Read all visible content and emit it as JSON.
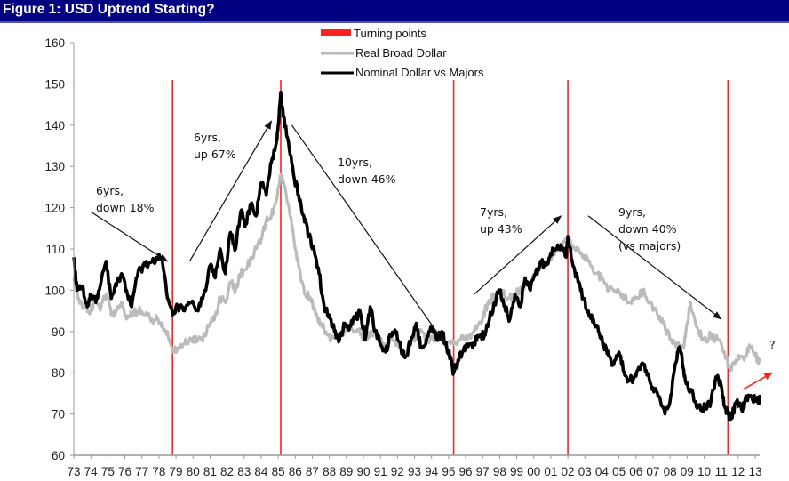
{
  "header": {
    "title": "Figure 1: USD Uptrend Starting?"
  },
  "colors": {
    "title_bg": "#000080",
    "turning": "#ff2020",
    "real": "#bbbbbb",
    "nominal": "#000000",
    "arrow": "#111111",
    "forecast_arrow": "#ff2020"
  },
  "chart_data": {
    "type": "line",
    "title": "Figure 1: USD Uptrend Starting?",
    "xlabel": "",
    "ylabel": "",
    "xlim": [
      1973,
      2013.5
    ],
    "ylim": [
      60,
      160
    ],
    "grid": false,
    "legend_position": "top-center",
    "y_ticks": [
      "60",
      "70",
      "80",
      "90",
      "100",
      "110",
      "120",
      "130",
      "140",
      "150",
      "160"
    ],
    "x_ticks": [
      "73",
      "74",
      "75",
      "76",
      "77",
      "78",
      "79",
      "80",
      "81",
      "82",
      "83",
      "84",
      "85",
      "86",
      "87",
      "88",
      "89",
      "90",
      "91",
      "92",
      "93",
      "94",
      "95",
      "96",
      "97",
      "98",
      "99",
      "00",
      "01",
      "02",
      "03",
      "04",
      "05",
      "06",
      "07",
      "08",
      "09",
      "10",
      "11",
      "12",
      "13"
    ],
    "legend": [
      "Turning points",
      "Real Broad Dollar",
      "Nominal Dollar vs Majors"
    ],
    "turning_points": [
      1978.8,
      1985.15,
      1995.3,
      2002.0,
      2011.4
    ],
    "series": [
      {
        "name": "Nominal Dollar vs Majors",
        "x": [
          1973.0,
          1973.2,
          1973.5,
          1973.8,
          1974.0,
          1974.3,
          1974.6,
          1974.9,
          1975.2,
          1975.5,
          1975.8,
          1976.1,
          1976.4,
          1976.8,
          1977.2,
          1977.6,
          1977.9,
          1978.2,
          1978.5,
          1978.8,
          1979.1,
          1979.5,
          1979.9,
          1980.3,
          1980.7,
          1981.0,
          1981.3,
          1981.6,
          1981.9,
          1982.2,
          1982.5,
          1982.8,
          1983.1,
          1983.4,
          1983.7,
          1984.0,
          1984.3,
          1984.6,
          1984.9,
          1985.0,
          1985.15,
          1985.3,
          1985.6,
          1985.9,
          1986.2,
          1986.5,
          1986.8,
          1987.1,
          1987.4,
          1987.7,
          1988.0,
          1988.3,
          1988.6,
          1988.9,
          1989.2,
          1989.5,
          1989.8,
          1990.1,
          1990.4,
          1990.7,
          1991.0,
          1991.3,
          1991.6,
          1991.9,
          1992.2,
          1992.5,
          1992.8,
          1993.1,
          1993.4,
          1993.7,
          1994.0,
          1994.3,
          1994.6,
          1994.9,
          1995.1,
          1995.3,
          1995.6,
          1995.9,
          1996.2,
          1996.5,
          1996.8,
          1997.1,
          1997.4,
          1997.7,
          1998.0,
          1998.3,
          1998.6,
          1998.9,
          1999.2,
          1999.5,
          1999.8,
          2000.1,
          2000.4,
          2000.7,
          2001.0,
          2001.3,
          2001.6,
          2001.9,
          2002.0,
          2002.3,
          2002.6,
          2002.9,
          2003.2,
          2003.5,
          2003.8,
          2004.1,
          2004.4,
          2004.7,
          2005.0,
          2005.3,
          2005.6,
          2005.9,
          2006.2,
          2006.5,
          2006.8,
          2007.1,
          2007.4,
          2007.7,
          2008.0,
          2008.3,
          2008.5,
          2008.7,
          2008.9,
          2009.2,
          2009.5,
          2009.8,
          2010.1,
          2010.4,
          2010.7,
          2011.0,
          2011.2,
          2011.4,
          2011.6,
          2011.9,
          2012.2,
          2012.5,
          2012.8,
          2013.1,
          2013.3
        ],
        "values": [
          108,
          100,
          101,
          96,
          99,
          97,
          102,
          107,
          98,
          101,
          104,
          100,
          96,
          105,
          106,
          107,
          108,
          107,
          98,
          94,
          96,
          95,
          97,
          95,
          100,
          106,
          103,
          110,
          104,
          114,
          110,
          119,
          116,
          121,
          118,
          126,
          123,
          131,
          136,
          140,
          148,
          142,
          136,
          128,
          123,
          118,
          113,
          110,
          104,
          96,
          94,
          90,
          88,
          92,
          91,
          93,
          95,
          88,
          96,
          90,
          87,
          85,
          89,
          90,
          86,
          84,
          88,
          92,
          86,
          88,
          91,
          88,
          90,
          86,
          84,
          80,
          83,
          86,
          87,
          87,
          89,
          89,
          93,
          97,
          100,
          96,
          93,
          99,
          96,
          103,
          100,
          104,
          107,
          106,
          109,
          110,
          111,
          108,
          113,
          106,
          102,
          98,
          95,
          93,
          90,
          87,
          84,
          82,
          85,
          80,
          78,
          79,
          81,
          82,
          78,
          76,
          74,
          70,
          73,
          82,
          86,
          84,
          78,
          76,
          73,
          71,
          72,
          73,
          79,
          77,
          72,
          70,
          69,
          73,
          71,
          74,
          74,
          73,
          74
        ],
        "color": "#000000"
      },
      {
        "name": "Real Broad Dollar",
        "x": [
          1973.0,
          1973.3,
          1973.6,
          1974.0,
          1974.3,
          1974.6,
          1974.9,
          1975.2,
          1975.5,
          1975.8,
          1976.1,
          1976.4,
          1976.8,
          1977.2,
          1977.6,
          1977.9,
          1978.2,
          1978.5,
          1978.8,
          1979.1,
          1979.5,
          1979.9,
          1980.3,
          1980.7,
          1981.0,
          1981.3,
          1981.6,
          1981.9,
          1982.2,
          1982.5,
          1982.8,
          1983.1,
          1983.4,
          1983.7,
          1984.0,
          1984.3,
          1984.6,
          1984.9,
          1985.15,
          1985.4,
          1985.7,
          1986.0,
          1986.3,
          1986.6,
          1986.9,
          1987.2,
          1987.5,
          1987.8,
          1988.1,
          1988.5,
          1988.9,
          1989.3,
          1989.7,
          1990.1,
          1990.5,
          1990.9,
          1991.3,
          1991.7,
          1992.1,
          1992.5,
          1992.9,
          1993.3,
          1993.7,
          1994.1,
          1994.5,
          1994.9,
          1995.3,
          1995.7,
          1996.1,
          1996.5,
          1996.9,
          1997.3,
          1997.7,
          1998.1,
          1998.5,
          1998.9,
          1999.3,
          1999.7,
          2000.1,
          2000.5,
          2000.9,
          2001.3,
          2001.7,
          2002.0,
          2002.4,
          2002.8,
          2003.2,
          2003.6,
          2004.0,
          2004.4,
          2004.8,
          2005.2,
          2005.6,
          2006.0,
          2006.4,
          2006.8,
          2007.2,
          2007.6,
          2008.0,
          2008.4,
          2008.8,
          2009.0,
          2009.2,
          2009.6,
          2010.0,
          2010.4,
          2010.8,
          2011.2,
          2011.5,
          2011.8,
          2012.1,
          2012.4,
          2012.7,
          2013.0,
          2013.3
        ],
        "values": [
          103,
          98,
          96,
          95,
          97,
          96,
          99,
          94,
          95,
          97,
          93,
          94,
          95,
          94,
          93,
          93,
          92,
          90,
          85,
          86,
          87,
          88,
          88,
          89,
          92,
          94,
          98,
          97,
          102,
          100,
          104,
          105,
          108,
          110,
          112,
          117,
          118,
          122,
          128,
          125,
          118,
          110,
          104,
          99,
          98,
          94,
          92,
          90,
          88,
          89,
          90,
          91,
          90,
          88,
          90,
          88,
          87,
          88,
          86,
          85,
          88,
          90,
          88,
          88,
          89,
          87,
          87,
          88,
          88,
          90,
          92,
          97,
          99,
          100,
          98,
          99,
          100,
          101,
          104,
          106,
          107,
          110,
          111,
          112,
          110,
          109,
          107,
          104,
          103,
          100,
          100,
          99,
          97,
          98,
          100,
          97,
          95,
          92,
          88,
          87,
          86,
          92,
          97,
          91,
          88,
          89,
          88,
          85,
          81,
          82,
          84,
          84,
          86,
          84,
          83
        ],
        "color": "#bbbbbb"
      }
    ],
    "annotations": [
      {
        "lines": [
          "6yrs,",
          "down 18%"
        ],
        "arrow_from": [
          1974.0,
          119
        ],
        "arrow_to": [
          1978.5,
          107
        ]
      },
      {
        "lines": [
          "6yrs,",
          "up 67%"
        ],
        "arrow_from": [
          1979.8,
          107
        ],
        "arrow_to": [
          1984.6,
          141
        ]
      },
      {
        "lines": [
          "10yrs,",
          "down 46%"
        ],
        "arrow_from": [
          1985.8,
          140
        ],
        "arrow_to": [
          1994.8,
          87
        ]
      },
      {
        "lines": [
          "7yrs,",
          "up 43%"
        ],
        "arrow_from": [
          1996.5,
          99
        ],
        "arrow_to": [
          2001.6,
          118
        ]
      },
      {
        "lines": [
          "9yrs,",
          "down 40%",
          " (vs majors)"
        ],
        "arrow_from": [
          2003.2,
          118
        ],
        "arrow_to": [
          2011.0,
          93
        ]
      },
      {
        "lines": [
          "?"
        ],
        "arrow_from": [
          2012.3,
          76
        ],
        "arrow_to": [
          2014.0,
          80
        ]
      }
    ]
  }
}
